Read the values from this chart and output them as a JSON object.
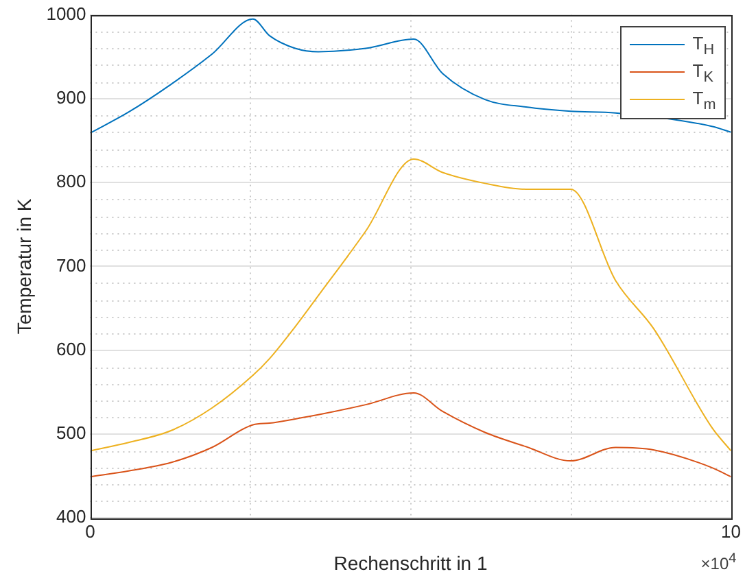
{
  "chart_data": {
    "type": "line",
    "xlabel": "Rechenschritt in 1",
    "ylabel": "Temperatur in K",
    "annotations": [
      "×10$^{4}$"
    ],
    "xlim": [
      0,
      10
    ],
    "xticks": [
      0,
      {
        "value": 2.5,
        "label": null
      },
      {
        "value": 5,
        "label": null
      },
      {
        "value": 7.5,
        "label": null
      },
      10
    ],
    "ylim": [
      400,
      1000
    ],
    "yticks": [
      400,
      500,
      600,
      700,
      800,
      900,
      1000
    ],
    "grid": true,
    "legend": "top right",
    "marker": "none",
    "line_style": "solid",
    "x": [
      0,
      0.6,
      1.26,
      1.9,
      2.54,
      2.8,
      3.2,
      3.56,
      4.3,
      5.05,
      5.5,
      6.16,
      6.8,
      7.5,
      8.2,
      8.8,
      9.7,
      10
    ],
    "series": [
      {
        "name": "T$_{H}$",
        "color": "#0072bd",
        "values": [
          859,
          884,
          917,
          953,
          995,
          975,
          960,
          956,
          960,
          971,
          930,
          899,
          890,
          885,
          883,
          null,
          867,
          860
        ]
      },
      {
        "name": "T$_{K}$",
        "color": "#d95319",
        "values": [
          449,
          456,
          466,
          484,
          511,
          513,
          518,
          523,
          535,
          549,
          527,
          502,
          485,
          468,
          484,
          481,
          460,
          449
        ]
      },
      {
        "name": "T$_{m}$",
        "color": "#edb120",
        "values": [
          480,
          490,
          504,
          531,
          570,
          590,
          628,
          665,
          742,
          828,
          812,
          799,
          792,
          792,
          683,
          625,
          508,
          480
        ]
      }
    ]
  }
}
